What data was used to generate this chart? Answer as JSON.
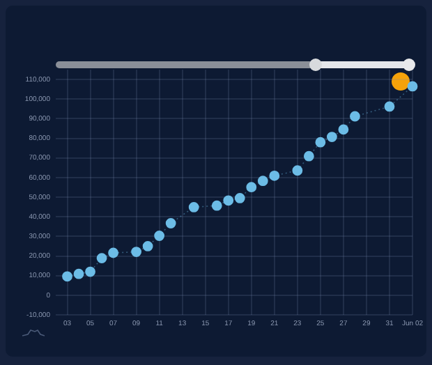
{
  "chart_data": {
    "type": "line",
    "marker": "circle",
    "line_style": "dotted",
    "grid": true,
    "legend": false,
    "x": [
      "--05-03",
      "--05-04",
      "--05-05",
      "--05-06",
      "--05-07",
      "--05-09",
      "--05-10",
      "--05-11",
      "--05-12",
      "--05-14",
      "--05-16",
      "--05-17",
      "--05-18",
      "--05-19",
      "--05-20",
      "--05-21",
      "--05-23",
      "--05-24",
      "--05-25",
      "--05-26",
      "--05-27",
      "--05-28",
      "--05-31",
      "--06-02"
    ],
    "series": [
      {
        "color": "#6cbce6",
        "values": [
          9600,
          10900,
          12000,
          18900,
          21600,
          22100,
          25000,
          30300,
          36700,
          44900,
          45700,
          48300,
          49500,
          55100,
          58300,
          60900,
          63600,
          70900,
          78000,
          80700,
          84500,
          91200,
          96200,
          106500
        ]
      }
    ],
    "xlim": [
      "--05-02",
      "--06-02"
    ],
    "xticks": [
      {
        "value": "--05-03",
        "label": "03"
      },
      {
        "value": "--05-05",
        "label": "05"
      },
      {
        "value": "--05-07",
        "label": "07"
      },
      {
        "value": "--05-09",
        "label": "09"
      },
      {
        "value": "--05-11",
        "label": "11"
      },
      {
        "value": "--05-13",
        "label": "13"
      },
      {
        "value": "--05-15",
        "label": "15"
      },
      {
        "value": "--05-17",
        "label": "17"
      },
      {
        "value": "--05-19",
        "label": "19"
      },
      {
        "value": "--05-21",
        "label": "21"
      },
      {
        "value": "--05-23",
        "label": "23"
      },
      {
        "value": "--05-25",
        "label": "25"
      },
      {
        "value": "--05-27",
        "label": "27"
      },
      {
        "value": "--05-29",
        "label": "29"
      },
      {
        "value": "--05-31",
        "label": "31"
      },
      {
        "value": "--06-02",
        "label": "Jun 02"
      }
    ],
    "ylim": [
      -10000,
      115000
    ],
    "yticks": [
      {
        "value": -10000,
        "label": "-10,000"
      },
      {
        "value": 0,
        "label": "0"
      },
      {
        "value": 10000,
        "label": "10,000"
      },
      {
        "value": 20000,
        "label": "20,000"
      },
      {
        "value": 30000,
        "label": "30,000"
      },
      {
        "value": 40000,
        "label": "40,000"
      },
      {
        "value": 50000,
        "label": "50,000"
      },
      {
        "value": 60000,
        "label": "60,000"
      },
      {
        "value": 70000,
        "label": "70,000"
      },
      {
        "value": 80000,
        "label": "80,000"
      },
      {
        "value": 90000,
        "label": "90,000"
      },
      {
        "value": 100000,
        "label": "100,000"
      },
      {
        "value": 110000,
        "label": "110,000"
      }
    ]
  }
}
